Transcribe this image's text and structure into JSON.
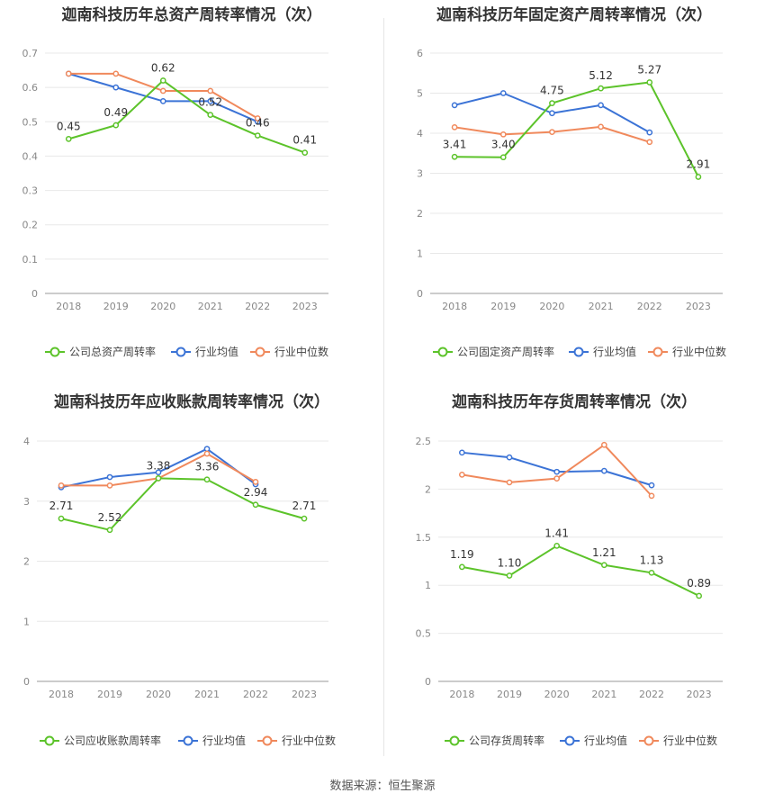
{
  "footer": {
    "label": "数据来源：",
    "source": "恒生聚源"
  },
  "colors": {
    "company": "#5cc32a",
    "avg": "#3b73d6",
    "median": "#f0895c"
  },
  "legend": {
    "avg": "行业均值",
    "median": "行业中位数"
  },
  "chart_data": [
    {
      "type": "line",
      "title": "迦南科技历年总资产周转率情况（次）",
      "categories": [
        "2018",
        "2019",
        "2020",
        "2021",
        "2022",
        "2023"
      ],
      "ylim": [
        0,
        0.7
      ],
      "yticks": [
        "0",
        "0.1",
        "0.2",
        "0.3",
        "0.4",
        "0.5",
        "0.6",
        "0.7"
      ],
      "grid": true,
      "legend_position": "bottom",
      "series": [
        {
          "name": "公司总资产周转率",
          "values": [
            0.45,
            0.49,
            0.62,
            0.52,
            0.46,
            0.41
          ],
          "labels": [
            "0.45",
            "0.49",
            "0.62",
            "0.52",
            "0.46",
            "0.41"
          ]
        },
        {
          "name": "行业均值",
          "values": [
            0.64,
            0.6,
            0.56,
            0.56,
            0.5,
            null
          ]
        },
        {
          "name": "行业中位数",
          "values": [
            0.64,
            0.64,
            0.59,
            0.59,
            0.51,
            null
          ]
        }
      ]
    },
    {
      "type": "line",
      "title": "迦南科技历年固定资产周转率情况（次）",
      "categories": [
        "2018",
        "2019",
        "2020",
        "2021",
        "2022",
        "2023"
      ],
      "ylim": [
        0,
        6
      ],
      "yticks": [
        "0",
        "1",
        "2",
        "3",
        "4",
        "5",
        "6"
      ],
      "grid": true,
      "legend_position": "bottom",
      "series": [
        {
          "name": "公司固定资产周转率",
          "values": [
            3.41,
            3.4,
            4.75,
            5.12,
            5.27,
            2.91
          ],
          "labels": [
            "3.41",
            "3.40",
            "4.75",
            "5.12",
            "5.27",
            "2.91"
          ]
        },
        {
          "name": "行业均值",
          "values": [
            4.7,
            5.0,
            4.5,
            4.7,
            4.02,
            null
          ]
        },
        {
          "name": "行业中位数",
          "values": [
            4.15,
            3.97,
            4.03,
            4.16,
            3.78,
            null
          ]
        }
      ]
    },
    {
      "type": "line",
      "title": "迦南科技历年应收账款周转率情况（次）",
      "categories": [
        "2018",
        "2019",
        "2020",
        "2021",
        "2022",
        "2023"
      ],
      "ylim": [
        0,
        4
      ],
      "yticks": [
        "0",
        "1",
        "2",
        "3",
        "4"
      ],
      "grid": true,
      "legend_position": "bottom",
      "series": [
        {
          "name": "公司应收账款周转率",
          "values": [
            2.71,
            2.52,
            3.38,
            3.36,
            2.94,
            2.71
          ],
          "labels": [
            "2.71",
            "2.52",
            "3.38",
            "3.36",
            "2.94",
            "2.71"
          ]
        },
        {
          "name": "行业均值",
          "values": [
            3.23,
            3.4,
            3.48,
            3.87,
            3.28,
            null
          ]
        },
        {
          "name": "行业中位数",
          "values": [
            3.26,
            3.26,
            3.38,
            3.79,
            3.32,
            null
          ]
        }
      ]
    },
    {
      "type": "line",
      "title": "迦南科技历年存货周转率情况（次）",
      "categories": [
        "2018",
        "2019",
        "2020",
        "2021",
        "2022",
        "2023"
      ],
      "ylim": [
        0,
        2.5
      ],
      "yticks": [
        "0",
        "0.5",
        "1",
        "1.5",
        "2",
        "2.5"
      ],
      "grid": true,
      "legend_position": "bottom",
      "series": [
        {
          "name": "公司存货周转率",
          "values": [
            1.19,
            1.1,
            1.41,
            1.21,
            1.13,
            0.89
          ],
          "labels": [
            "1.19",
            "1.10",
            "1.41",
            "1.21",
            "1.13",
            "0.89"
          ]
        },
        {
          "name": "行业均值",
          "values": [
            2.38,
            2.33,
            2.18,
            2.19,
            2.04,
            null
          ]
        },
        {
          "name": "行业中位数",
          "values": [
            2.15,
            2.07,
            2.11,
            2.46,
            1.93,
            null
          ]
        }
      ]
    }
  ]
}
